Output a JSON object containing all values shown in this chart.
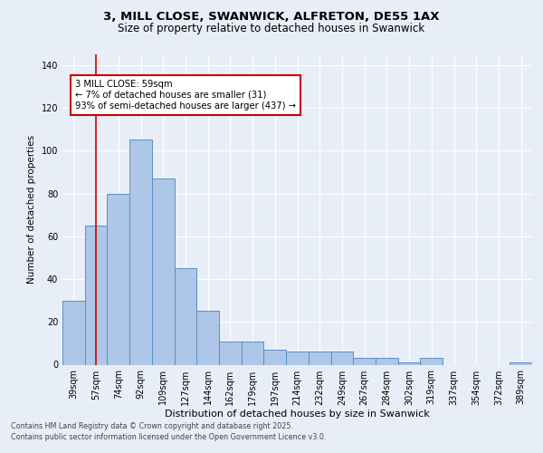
{
  "title_line1": "3, MILL CLOSE, SWANWICK, ALFRETON, DE55 1AX",
  "title_line2": "Size of property relative to detached houses in Swanwick",
  "xlabel": "Distribution of detached houses by size in Swanwick",
  "ylabel": "Number of detached properties",
  "categories": [
    "39sqm",
    "57sqm",
    "74sqm",
    "92sqm",
    "109sqm",
    "127sqm",
    "144sqm",
    "162sqm",
    "179sqm",
    "197sqm",
    "214sqm",
    "232sqm",
    "249sqm",
    "267sqm",
    "284sqm",
    "302sqm",
    "319sqm",
    "337sqm",
    "354sqm",
    "372sqm",
    "389sqm"
  ],
  "values": [
    30,
    65,
    80,
    105,
    87,
    45,
    25,
    11,
    11,
    7,
    6,
    6,
    6,
    3,
    3,
    1,
    3,
    0,
    0,
    0,
    1
  ],
  "bar_color": "#aec6e8",
  "bar_edge_color": "#5a8fc2",
  "red_line_x": 1,
  "annotation_text": "3 MILL CLOSE: 59sqm\n← 7% of detached houses are smaller (31)\n93% of semi-detached houses are larger (437) →",
  "annotation_box_color": "#ffffff",
  "annotation_box_edge": "#cc0000",
  "ylim": [
    0,
    145
  ],
  "yticks": [
    0,
    20,
    40,
    60,
    80,
    100,
    120,
    140
  ],
  "background_color": "#e8eef7",
  "plot_bg_color": "#e8eef7",
  "footer_line1": "Contains HM Land Registry data © Crown copyright and database right 2025.",
  "footer_line2": "Contains public sector information licensed under the Open Government Licence v3.0.",
  "grid_color": "#ffffff",
  "red_line_color": "#cc0000",
  "title1_fontsize": 9.5,
  "title2_fontsize": 8.5,
  "ylabel_fontsize": 7.5,
  "xlabel_fontsize": 8.0,
  "tick_fontsize": 7.0,
  "annot_fontsize": 7.2,
  "footer_fontsize": 5.8
}
